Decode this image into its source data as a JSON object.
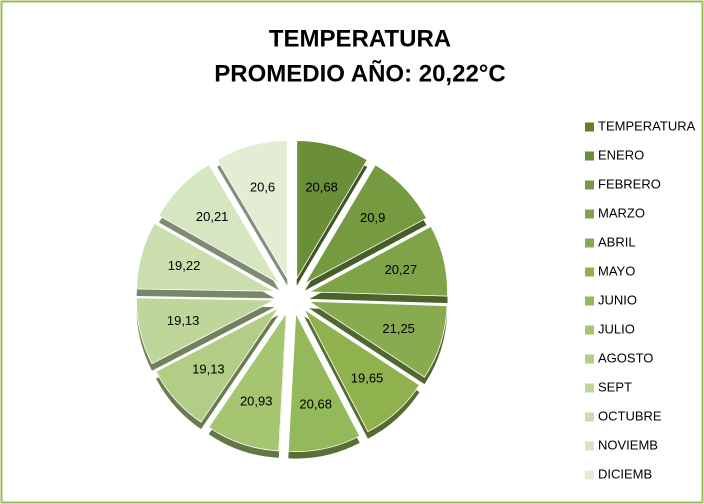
{
  "chart_data": {
    "type": "pie",
    "title": "TEMPERATURA",
    "subtitle": "PROMEDIO AÑO: 20,22°C",
    "categories": [
      "TEMPERATURA",
      "ENERO",
      "FEBRERO",
      "MARZO",
      "ABRIL",
      "MAYO",
      "JUNIO",
      "JULIO",
      "AGOSTO",
      "SEPT",
      "OCTUBRE",
      "NOVIEMB",
      "DICIEMB"
    ],
    "values": [
      null,
      20.68,
      20.9,
      20.27,
      21.25,
      19.65,
      20.68,
      20.93,
      19.13,
      19.13,
      19.22,
      20.21,
      20.6
    ],
    "value_labels": [
      null,
      "20,68",
      "20,9",
      "20,27",
      "21,25",
      "19,65",
      "20,68",
      "20,93",
      "19,13",
      "19,13",
      "19,22",
      "20,21",
      "20,6"
    ],
    "colors": [
      "#5f7f2c",
      "#6b8e38",
      "#769a3f",
      "#7fa347",
      "#88ab50",
      "#8fb24f",
      "#93b95a",
      "#a6c571",
      "#b2cd85",
      "#bfd69a",
      "#cadfad",
      "#d6e6c1",
      "#e2edd4"
    ],
    "legend": "right"
  }
}
